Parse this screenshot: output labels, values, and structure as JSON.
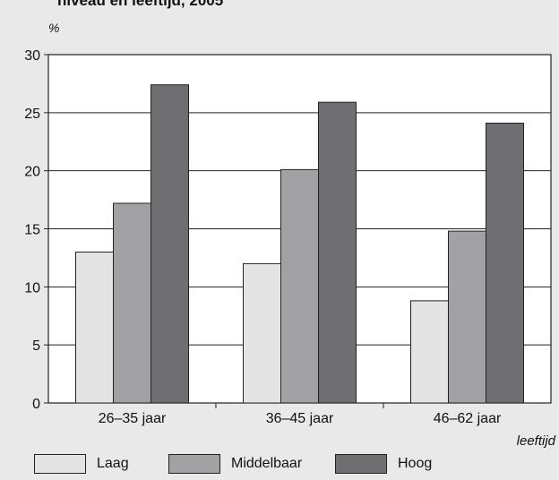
{
  "title": "niveau en leeftijd, 2005",
  "chart_data": {
    "type": "bar",
    "categories": [
      "26–35 jaar",
      "36–45 jaar",
      "46–62 jaar"
    ],
    "series": [
      {
        "name": "Laag",
        "values": [
          13.0,
          12.0,
          8.8
        ],
        "color": "#e4e4e4"
      },
      {
        "name": "Middelbaar",
        "values": [
          17.2,
          20.1,
          14.8
        ],
        "color": "#a2a2a4"
      },
      {
        "name": "Hoog",
        "values": [
          27.4,
          25.9,
          24.1
        ],
        "color": "#6f6f72"
      }
    ],
    "ylabel": "%",
    "xlabel": "leeftijd",
    "ylim": [
      0,
      30
    ],
    "yticks": [
      0,
      5,
      10,
      15,
      20,
      25,
      30
    ],
    "grid": true,
    "legend_position": "bottom"
  }
}
